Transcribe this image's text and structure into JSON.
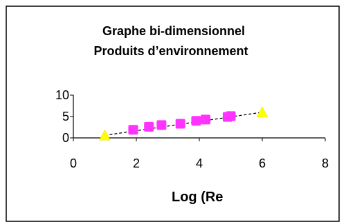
{
  "chart_data": {
    "type": "scatter",
    "title_lines": [
      "Graphe bi-dimensionnel",
      "Produits d’environnement"
    ],
    "xlabel": "Log (Re",
    "ylabel": "",
    "xlim": [
      0,
      8
    ],
    "ylim": [
      0,
      10
    ],
    "x_ticks": [
      "0",
      "2",
      "4",
      "6",
      "8"
    ],
    "y_ticks": [
      "0",
      "5",
      "10"
    ],
    "grid": false,
    "legend": "none",
    "series": [
      {
        "marker": "square",
        "color": "#ff33ff",
        "x": [
          1.9,
          2.4,
          2.8,
          3.4,
          3.9,
          4.2,
          4.9,
          5.0
        ],
        "y": [
          1.9,
          2.6,
          3.0,
          3.3,
          4.0,
          4.3,
          4.9,
          5.1
        ]
      },
      {
        "marker": "triangle",
        "color": "#ffff00",
        "x": [
          1.0,
          6.0
        ],
        "y": [
          0.6,
          6.0
        ]
      }
    ],
    "trendline": {
      "style": "dashed",
      "color": "#000000",
      "x": [
        1.0,
        6.0
      ],
      "y": [
        0.6,
        6.0
      ]
    }
  }
}
